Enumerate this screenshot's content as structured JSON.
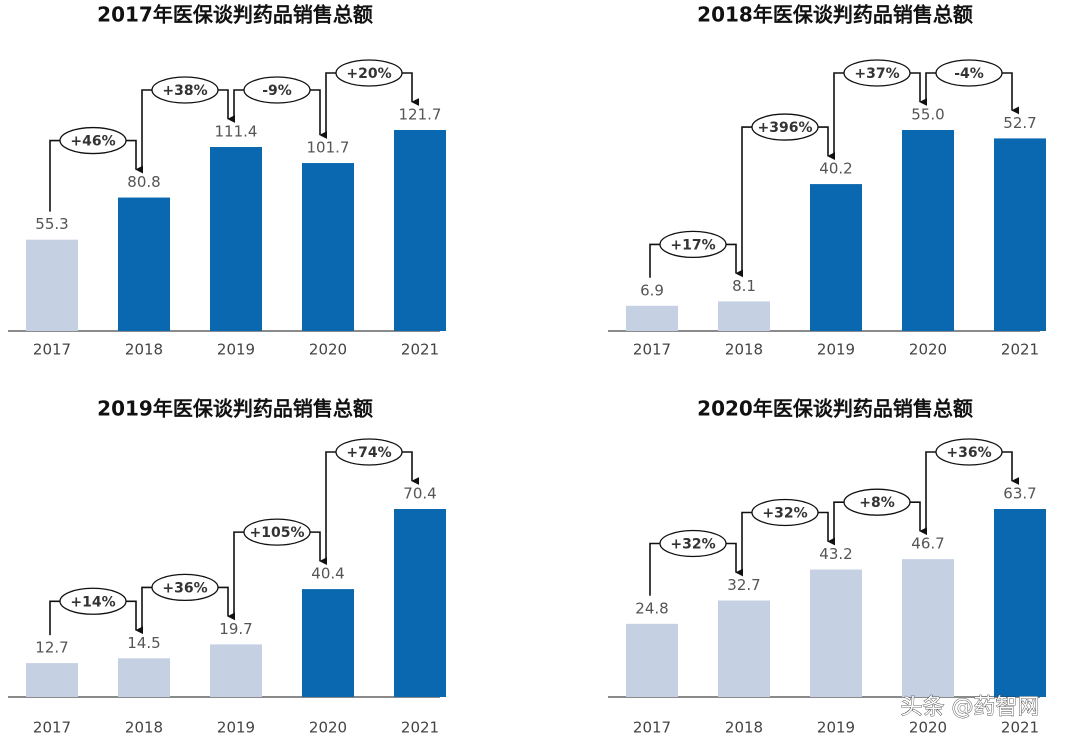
{
  "chart_data": [
    {
      "type": "bar",
      "title": "2017年医保谈判药品销售总额",
      "categories": [
        "2017",
        "2018",
        "2019",
        "2020",
        "2021"
      ],
      "values": [
        55.3,
        80.8,
        111.4,
        101.7,
        121.7
      ],
      "value_labels": [
        "55.3",
        "80.8",
        "111.4",
        "101.7",
        "121.7"
      ],
      "colors": [
        "#c5d0e3",
        "#0a68b0",
        "#0a68b0",
        "#0a68b0",
        "#0a68b0"
      ],
      "growth_labels": [
        "+46%",
        "+38%",
        "-9%",
        "+20%"
      ]
    },
    {
      "type": "bar",
      "title": "2018年医保谈判药品销售总额",
      "categories": [
        "2017",
        "2018",
        "2019",
        "2020",
        "2021"
      ],
      "values": [
        6.9,
        8.1,
        40.2,
        55.0,
        52.7
      ],
      "value_labels": [
        "6.9",
        "8.1",
        "40.2",
        "55.0",
        "52.7"
      ],
      "colors": [
        "#c5d0e3",
        "#c5d0e3",
        "#0a68b0",
        "#0a68b0",
        "#0a68b0"
      ],
      "growth_labels": [
        "+17%",
        "+396%",
        "+37%",
        "-4%"
      ]
    },
    {
      "type": "bar",
      "title": "2019年医保谈判药品销售总额",
      "categories": [
        "2017",
        "2018",
        "2019",
        "2020",
        "2021"
      ],
      "values": [
        12.7,
        14.5,
        19.7,
        40.4,
        70.4
      ],
      "value_labels": [
        "12.7",
        "14.5",
        "19.7",
        "40.4",
        "70.4"
      ],
      "colors": [
        "#c5d0e3",
        "#c5d0e3",
        "#c5d0e3",
        "#0a68b0",
        "#0a68b0"
      ],
      "growth_labels": [
        "+14%",
        "+36%",
        "+105%",
        "+74%"
      ]
    },
    {
      "type": "bar",
      "title": "2020年医保谈判药品销售总额",
      "categories": [
        "2017",
        "2018",
        "2019",
        "2020",
        "2021"
      ],
      "values": [
        24.8,
        32.7,
        43.2,
        46.7,
        63.7
      ],
      "value_labels": [
        "24.8",
        "32.7",
        "43.2",
        "46.7",
        "63.7"
      ],
      "colors": [
        "#c5d0e3",
        "#c5d0e3",
        "#c5d0e3",
        "#c5d0e3",
        "#0a68b0"
      ],
      "growth_labels": [
        "+32%",
        "+32%",
        "+8%",
        "+36%"
      ]
    }
  ],
  "watermark": "头条 @药智网"
}
